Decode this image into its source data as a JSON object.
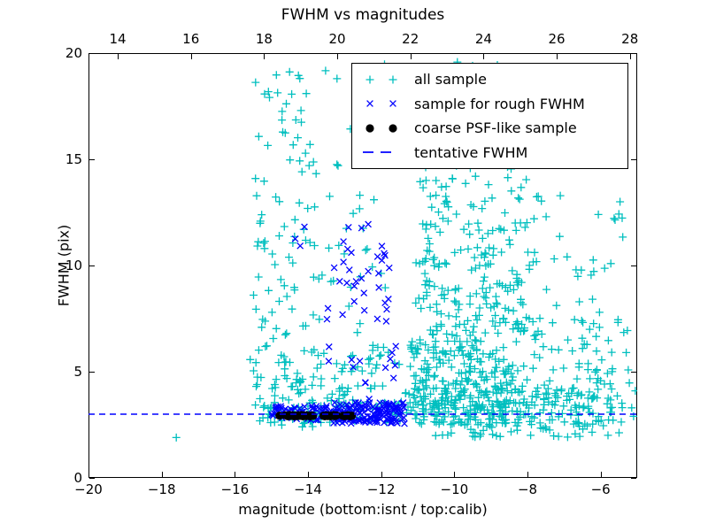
{
  "figure": {
    "title": "FWHM vs magnitudes",
    "xlabel": "magnitude (bottom:isnt / top:calib)",
    "ylabel": "FWHM (pix)",
    "background": "#ffffff"
  },
  "chart_data": {
    "type": "scatter",
    "title": "FWHM vs magnitudes",
    "xlabel": "magnitude (bottom:isnt / top:calib)",
    "ylabel": "FWHM (pix)",
    "xlim": [
      -20,
      -5
    ],
    "ylim": [
      0,
      20
    ],
    "grid": false,
    "x_axis_bottom": {
      "units": "isnt",
      "ticks": [
        -20,
        -18,
        -16,
        -14,
        -12,
        -10,
        -8,
        -6
      ]
    },
    "x_axis_top": {
      "units": "calib",
      "ticks": [
        14,
        16,
        18,
        20,
        22,
        24,
        26,
        28
      ],
      "calib_minus_isnt_offset": 33.2
    },
    "y_axis": {
      "ticks": [
        0,
        5,
        10,
        15,
        20
      ]
    },
    "tentative_fwhm": 3.0,
    "legend": {
      "position": "upper right",
      "entries": [
        {
          "label": "all sample",
          "marker": "plus",
          "color": "#00bfbf"
        },
        {
          "label": "sample for rough FWHM",
          "marker": "x",
          "color": "#0000ff"
        },
        {
          "label": "coarse PSF-like sample",
          "marker": "dot",
          "color": "#000000"
        },
        {
          "label": "tentative FWHM",
          "marker": "dashed-line",
          "color": "#0000ff"
        }
      ]
    },
    "series": [
      {
        "name": "all sample",
        "marker": "plus",
        "color": "#00bfbf",
        "clusters": [
          {
            "seed": 11,
            "n": 70,
            "x": [
              -15.6,
              -13.3
            ],
            "y": [
              2.4,
              6.0
            ]
          },
          {
            "seed": 12,
            "n": 95,
            "x": [
              -15.5,
              -13.3
            ],
            "y": [
              6.0,
              19.6
            ]
          },
          {
            "seed": 13,
            "n": 45,
            "x": [
              -13.3,
              -11.5
            ],
            "y": [
              3.2,
              6.0
            ]
          },
          {
            "seed": 14,
            "n": 35,
            "x": [
              -13.3,
              -11.5
            ],
            "y": [
              6.0,
              19.5
            ]
          },
          {
            "seed": 15,
            "n": 70,
            "x": [
              -15.3,
              -11.35
            ],
            "y": [
              2.6,
              3.6
            ]
          },
          {
            "seed": 16,
            "n": 190,
            "x": [
              -11.35,
              -8.6
            ],
            "y": [
              2.5,
              4.3
            ]
          },
          {
            "seed": 17,
            "n": 140,
            "x": [
              -11.25,
              -8.3
            ],
            "y": [
              4.3,
              6.6
            ]
          },
          {
            "seed": 18,
            "n": 95,
            "x": [
              -11.1,
              -8.0
            ],
            "y": [
              6.6,
              9.2
            ]
          },
          {
            "seed": 19,
            "n": 75,
            "x": [
              -11.05,
              -7.8
            ],
            "y": [
              9.2,
              12.2
            ]
          },
          {
            "seed": 20,
            "n": 60,
            "x": [
              -11.0,
              -7.6
            ],
            "y": [
              12.2,
              15.6
            ]
          },
          {
            "seed": 21,
            "n": 50,
            "x": [
              -10.9,
              -7.3
            ],
            "y": [
              15.6,
              19.7
            ]
          },
          {
            "seed": 22,
            "n": 130,
            "x": [
              -8.6,
              -5.4
            ],
            "y": [
              2.5,
              4.4
            ]
          },
          {
            "seed": 23,
            "n": 65,
            "x": [
              -8.3,
              -5.2
            ],
            "y": [
              4.4,
              7.6
            ]
          },
          {
            "seed": 24,
            "n": 28,
            "x": [
              -8.0,
              -5.3
            ],
            "y": [
              7.6,
              13.5
            ]
          },
          {
            "seed": 25,
            "n": 40,
            "x": [
              -10.8,
              -5.3
            ],
            "y": [
              1.9,
              2.5
            ]
          }
        ],
        "points": [
          [
            -17.6,
            1.9
          ],
          [
            -5.1,
            2.9
          ],
          [
            -5.05,
            4.1
          ],
          [
            -5.15,
            3.3
          ],
          [
            -5.3,
            5.9
          ]
        ]
      },
      {
        "name": "sample for rough FWHM",
        "marker": "x",
        "color": "#0000ff",
        "clusters": [
          {
            "seed": 31,
            "n": 55,
            "x": [
              -15.0,
              -13.3
            ],
            "y": [
              2.7,
              3.4
            ]
          },
          {
            "seed": 32,
            "n": 150,
            "x": [
              -13.3,
              -11.35
            ],
            "y": [
              2.55,
              3.55
            ]
          },
          {
            "seed": 33,
            "n": 34,
            "x": [
              -13.6,
              -11.55
            ],
            "y": [
              3.6,
              10.5
            ]
          },
          {
            "seed": 34,
            "n": 9,
            "x": [
              -13.05,
              -11.9
            ],
            "y": [
              9.8,
              12.4
            ]
          },
          {
            "seed": 35,
            "n": 3,
            "x": [
              -14.35,
              -14.0
            ],
            "y": [
              10.5,
              12.0
            ]
          }
        ],
        "points": [
          [
            -11.62,
            5.3
          ],
          [
            -11.7,
            5.9
          ],
          [
            -11.66,
            4.7
          ],
          [
            -11.75,
            5.6
          ],
          [
            -11.6,
            6.2
          ]
        ]
      },
      {
        "name": "coarse PSF-like sample",
        "marker": "dot",
        "color": "#000000",
        "clusters": [],
        "points": [
          [
            -14.78,
            2.93
          ],
          [
            -14.62,
            2.95
          ],
          [
            -14.55,
            2.9
          ],
          [
            -14.5,
            2.96
          ],
          [
            -14.46,
            2.92
          ],
          [
            -14.42,
            2.95
          ],
          [
            -14.38,
            2.9
          ],
          [
            -14.34,
            2.94
          ],
          [
            -14.3,
            2.91
          ],
          [
            -14.26,
            2.95
          ],
          [
            -14.22,
            2.92
          ],
          [
            -14.18,
            2.96
          ],
          [
            -14.14,
            2.9
          ],
          [
            -14.1,
            2.94
          ],
          [
            -14.06,
            2.91
          ],
          [
            -14.02,
            2.95
          ],
          [
            -13.98,
            2.92
          ],
          [
            -13.94,
            2.9
          ],
          [
            -13.9,
            2.94
          ],
          [
            -13.86,
            2.92
          ],
          [
            -13.58,
            2.93
          ],
          [
            -13.54,
            2.9
          ],
          [
            -13.5,
            2.95
          ],
          [
            -13.46,
            2.91
          ],
          [
            -13.42,
            2.94
          ],
          [
            -13.38,
            2.9
          ],
          [
            -13.34,
            2.93
          ],
          [
            -13.3,
            2.96
          ],
          [
            -13.26,
            2.91
          ],
          [
            -13.22,
            2.94
          ],
          [
            -13.05,
            2.92
          ],
          [
            -13.0,
            2.9
          ],
          [
            -12.95,
            2.93
          ],
          [
            -12.9,
            2.95
          ],
          [
            -12.85,
            2.9
          ],
          [
            -12.8,
            2.93
          ]
        ]
      },
      {
        "name": "tentative FWHM",
        "marker": "dashed-line",
        "type": "hline",
        "y": 3.0,
        "color": "#0000ff"
      }
    ]
  }
}
